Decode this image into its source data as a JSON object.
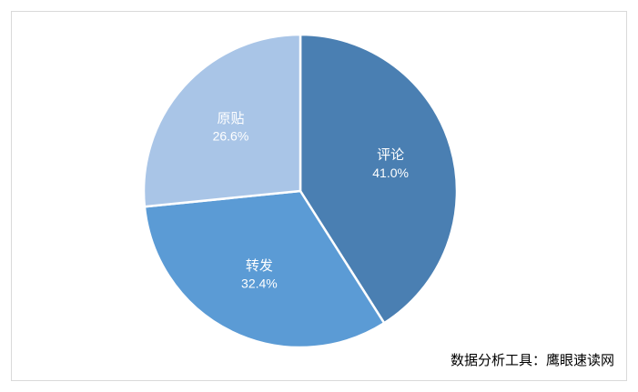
{
  "chart_data": {
    "type": "pie",
    "categories": [
      "评论",
      "转发",
      "原贴"
    ],
    "values": [
      41.0,
      32.4,
      26.6
    ],
    "value_labels": [
      "41.0%",
      "32.4%",
      "26.6%"
    ],
    "colors": [
      "#4a7fb2",
      "#5b9bd5",
      "#a9c5e7"
    ],
    "source": "数据分析工具：鹰眼速读网"
  }
}
